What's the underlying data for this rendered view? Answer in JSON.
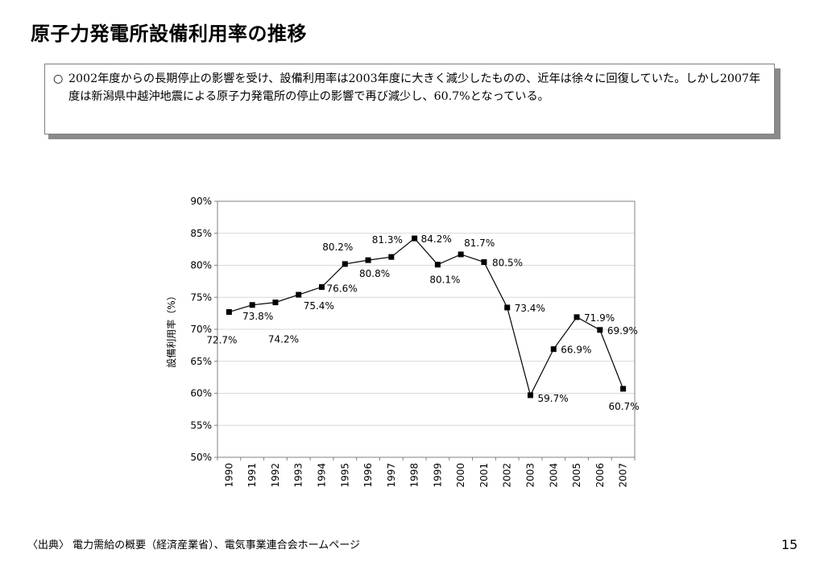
{
  "page": {
    "title": "原子力発電所設備利用率の推移",
    "note_bullet": "○",
    "note": "2002年度からの長期停止の影響を受け、設備利用率は2003年度に大きく減少したものの、近年は徐々に回復していた。しかし2007年度は新潟県中越沖地震による原子力発電所の停止の影響で再び減少し、60.7%となっている。",
    "source": "〈出典〉 電力需給の概要（経済産業省）、電気事業連合会ホームページ",
    "page_number": "15"
  },
  "chart_data": {
    "type": "line",
    "x": [
      "1990",
      "1991",
      "1992",
      "1993",
      "1994",
      "1995",
      "1996",
      "1997",
      "1998",
      "1999",
      "2000",
      "2001",
      "2002",
      "2003",
      "2004",
      "2005",
      "2006",
      "2007"
    ],
    "series": [
      {
        "values": [
          72.7,
          73.8,
          74.2,
          75.4,
          76.6,
          80.2,
          80.8,
          81.3,
          84.2,
          80.1,
          81.7,
          80.5,
          73.4,
          59.7,
          66.9,
          71.9,
          69.9,
          60.7
        ],
        "labels": [
          "72.7%",
          "73.8%",
          "74.2%",
          "75.4%",
          "76.6%",
          "80.2%",
          "80.8%",
          "81.3%",
          "84.2%",
          "80.1%",
          "81.7%",
          "80.5%",
          "73.4%",
          "59.7%",
          "66.9%",
          "71.9%",
          "69.9%",
          "60.7%"
        ],
        "color": "#000000"
      }
    ],
    "ylim": [
      50,
      90
    ],
    "yticks": [
      50,
      55,
      60,
      65,
      70,
      75,
      80,
      85,
      90
    ],
    "ytick_labels": [
      "50%",
      "55%",
      "60%",
      "65%",
      "70%",
      "75%",
      "80%",
      "85%",
      "90%"
    ],
    "ylabel": "設備利用率（%）",
    "xlabel": "",
    "grid": true,
    "marker": "square"
  }
}
